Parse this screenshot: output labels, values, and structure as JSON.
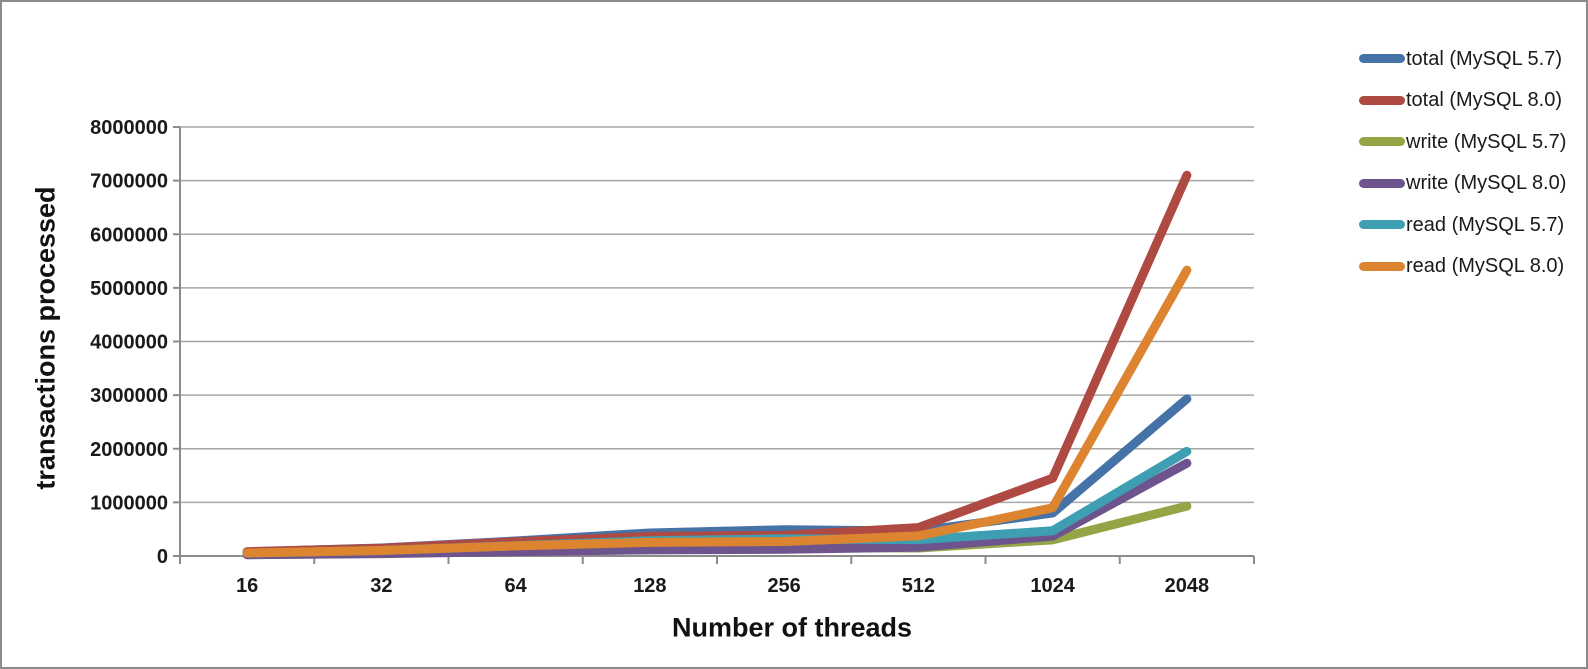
{
  "chart_data": {
    "type": "line",
    "title": "",
    "xlabel": "Number of threads",
    "ylabel": "transactions processed",
    "categories": [
      "16",
      "32",
      "64",
      "128",
      "256",
      "512",
      "1024",
      "2048"
    ],
    "y_ticks": [
      0,
      1000000,
      2000000,
      3000000,
      4000000,
      5000000,
      6000000,
      7000000,
      8000000
    ],
    "y_tick_labels": [
      "0",
      "1000000",
      "2000000",
      "3000000",
      "4000000",
      "5000000",
      "6000000",
      "7000000",
      "8000000"
    ],
    "ylim": [
      0,
      8000000
    ],
    "grid": true,
    "legend_position": "right",
    "series": [
      {
        "name": "total (MySQL 5.7)",
        "color": "#4573A7",
        "values": [
          78000,
          150000,
          280000,
          430000,
          490000,
          465000,
          800000,
          2930000
        ]
      },
      {
        "name": "total (MySQL 8.0)",
        "color": "#AF4A43",
        "values": [
          80000,
          145000,
          265000,
          365000,
          385000,
          530000,
          1450000,
          7100000
        ]
      },
      {
        "name": "write (MySQL 5.7)",
        "color": "#94A545",
        "values": [
          25000,
          48000,
          90000,
          140000,
          160000,
          150000,
          300000,
          930000
        ]
      },
      {
        "name": "write (MySQL 8.0)",
        "color": "#6E548D",
        "values": [
          24000,
          45000,
          82000,
          115000,
          125000,
          165000,
          370000,
          1730000
        ]
      },
      {
        "name": "read (MySQL 5.7)",
        "color": "#3E9FB3",
        "values": [
          54000,
          103000,
          192000,
          285000,
          320000,
          305000,
          470000,
          1950000
        ]
      },
      {
        "name": "read (MySQL 8.0)",
        "color": "#DD8430",
        "values": [
          56000,
          102000,
          188000,
          255000,
          270000,
          375000,
          900000,
          5330000
        ]
      }
    ]
  },
  "colors": {
    "background": "#ffffff",
    "frame_border": "#8b8b8b",
    "gridline": "#a6a6a6",
    "axis": "#8c8c8c",
    "tick_text": "#1a1a1a"
  }
}
